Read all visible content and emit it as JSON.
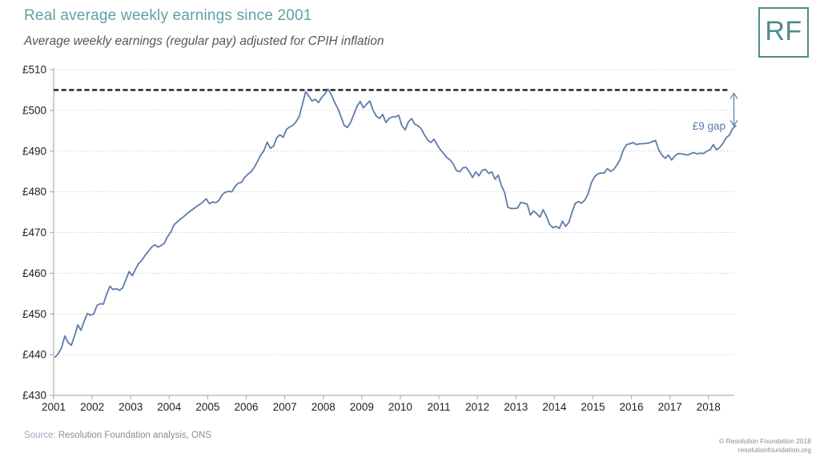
{
  "header": {
    "title": "Real average weekly earnings since 2001",
    "subtitle": "Average weekly earnings (regular pay) adjusted for CPIH inflation",
    "logo_text": "RF"
  },
  "chart_data": {
    "type": "line",
    "title": "Real average weekly earnings since 2001",
    "xlabel": "",
    "ylabel": "",
    "ylim": [
      430,
      510
    ],
    "xlim": [
      2001,
      2018.67
    ],
    "grid": true,
    "legend": false,
    "y_ticks": [
      430,
      440,
      450,
      460,
      470,
      480,
      490,
      500,
      510
    ],
    "y_tick_labels": [
      "£430",
      "£440",
      "£450",
      "£460",
      "£470",
      "£480",
      "£490",
      "£500",
      "£510"
    ],
    "x_ticks": [
      2001,
      2002,
      2003,
      2004,
      2005,
      2006,
      2007,
      2008,
      2009,
      2010,
      2011,
      2012,
      2013,
      2014,
      2015,
      2016,
      2017,
      2018
    ],
    "x_tick_labels": [
      "2001",
      "2002",
      "2003",
      "2004",
      "2005",
      "2006",
      "2007",
      "2008",
      "2009",
      "2010",
      "2011",
      "2012",
      "2013",
      "2014",
      "2015",
      "2016",
      "2017",
      "2018"
    ],
    "peak_line": {
      "value": 505,
      "style": "dashed",
      "color": "#2e2e2e"
    },
    "annotation": {
      "label": "£9 gap",
      "from_value": 505,
      "to_value": 496,
      "color": "#5e7bab"
    },
    "series": [
      {
        "name": "Real average weekly earnings (regular pay, CPIH-adjusted)",
        "color": "#5e7bab",
        "start": "2001-01",
        "frequency": "monthly",
        "values": [
          439.4,
          440.3,
          441.8,
          444.6,
          443.0,
          442.3,
          444.6,
          447.3,
          446.0,
          448.2,
          450.1,
          449.7,
          450.0,
          452.1,
          452.5,
          452.4,
          454.8,
          456.8,
          456.0,
          456.2,
          455.8,
          456.4,
          458.4,
          460.4,
          459.4,
          461.0,
          462.4,
          463.2,
          464.4,
          465.4,
          466.4,
          467.0,
          466.4,
          466.8,
          467.4,
          469.0,
          470.1,
          471.9,
          472.6,
          473.3,
          473.9,
          474.6,
          475.2,
          475.8,
          476.4,
          476.9,
          477.5,
          478.3,
          477.1,
          477.5,
          477.3,
          477.9,
          479.3,
          479.9,
          480.1,
          480.0,
          481.3,
          482.1,
          482.3,
          483.5,
          484.3,
          484.9,
          486.0,
          487.5,
          489.0,
          490.1,
          492.2,
          490.7,
          491.2,
          493.3,
          494.0,
          493.4,
          495.3,
          495.9,
          496.3,
          497.2,
          498.5,
          501.5,
          504.6,
          503.5,
          502.3,
          502.7,
          501.9,
          503.2,
          504.0,
          505.2,
          503.8,
          502.0,
          500.5,
          498.5,
          496.3,
          495.8,
          497.0,
          499.0,
          501.0,
          502.2,
          500.6,
          501.5,
          502.3,
          500.0,
          498.6,
          498.0,
          499.0,
          497.0,
          498.0,
          498.4,
          498.4,
          498.8,
          496.2,
          495.2,
          497.2,
          498.0,
          496.6,
          496.2,
          495.5,
          494.0,
          492.7,
          492.1,
          492.9,
          491.5,
          490.3,
          489.4,
          488.4,
          487.8,
          486.8,
          485.2,
          484.9,
          485.9,
          486.0,
          484.9,
          483.5,
          484.9,
          483.9,
          485.3,
          485.5,
          484.5,
          484.9,
          483.1,
          484.1,
          481.5,
          479.8,
          476.2,
          475.9,
          475.9,
          476.0,
          477.4,
          477.2,
          477.0,
          474.3,
          475.3,
          474.6,
          473.8,
          475.6,
          474.0,
          472.0,
          471.2,
          471.5,
          471.0,
          472.8,
          471.5,
          472.5,
          475.0,
          477.2,
          477.6,
          477.2,
          478.0,
          479.5,
          482.2,
          483.7,
          484.4,
          484.6,
          484.6,
          485.7,
          485.0,
          485.5,
          486.6,
          488.0,
          490.3,
          491.6,
          491.8,
          492.1,
          491.6,
          491.8,
          491.8,
          491.9,
          492.0,
          492.3,
          492.6,
          490.3,
          489.0,
          488.2,
          489.0,
          487.8,
          488.8,
          489.4,
          489.3,
          489.2,
          489.0,
          489.4,
          489.6,
          489.3,
          489.5,
          489.4,
          490.0,
          490.3,
          491.6,
          490.3,
          490.9,
          491.9,
          493.3,
          493.9,
          495.5,
          496.2
        ]
      }
    ],
    "colors": {
      "gridline": "#cccccc",
      "axis": "#b3b3b3",
      "tick_label": "#1f1f1f",
      "series": "#5e7bab",
      "peak_line": "#2e2e2e",
      "annotation": "#5e7bab"
    }
  },
  "footer": {
    "source_prefix": "Source:",
    "source_text": " Resolution Foundation analysis, ONS",
    "copyright": "© Resolution Foundation 2018",
    "website": "resolutionfoundation.org"
  }
}
